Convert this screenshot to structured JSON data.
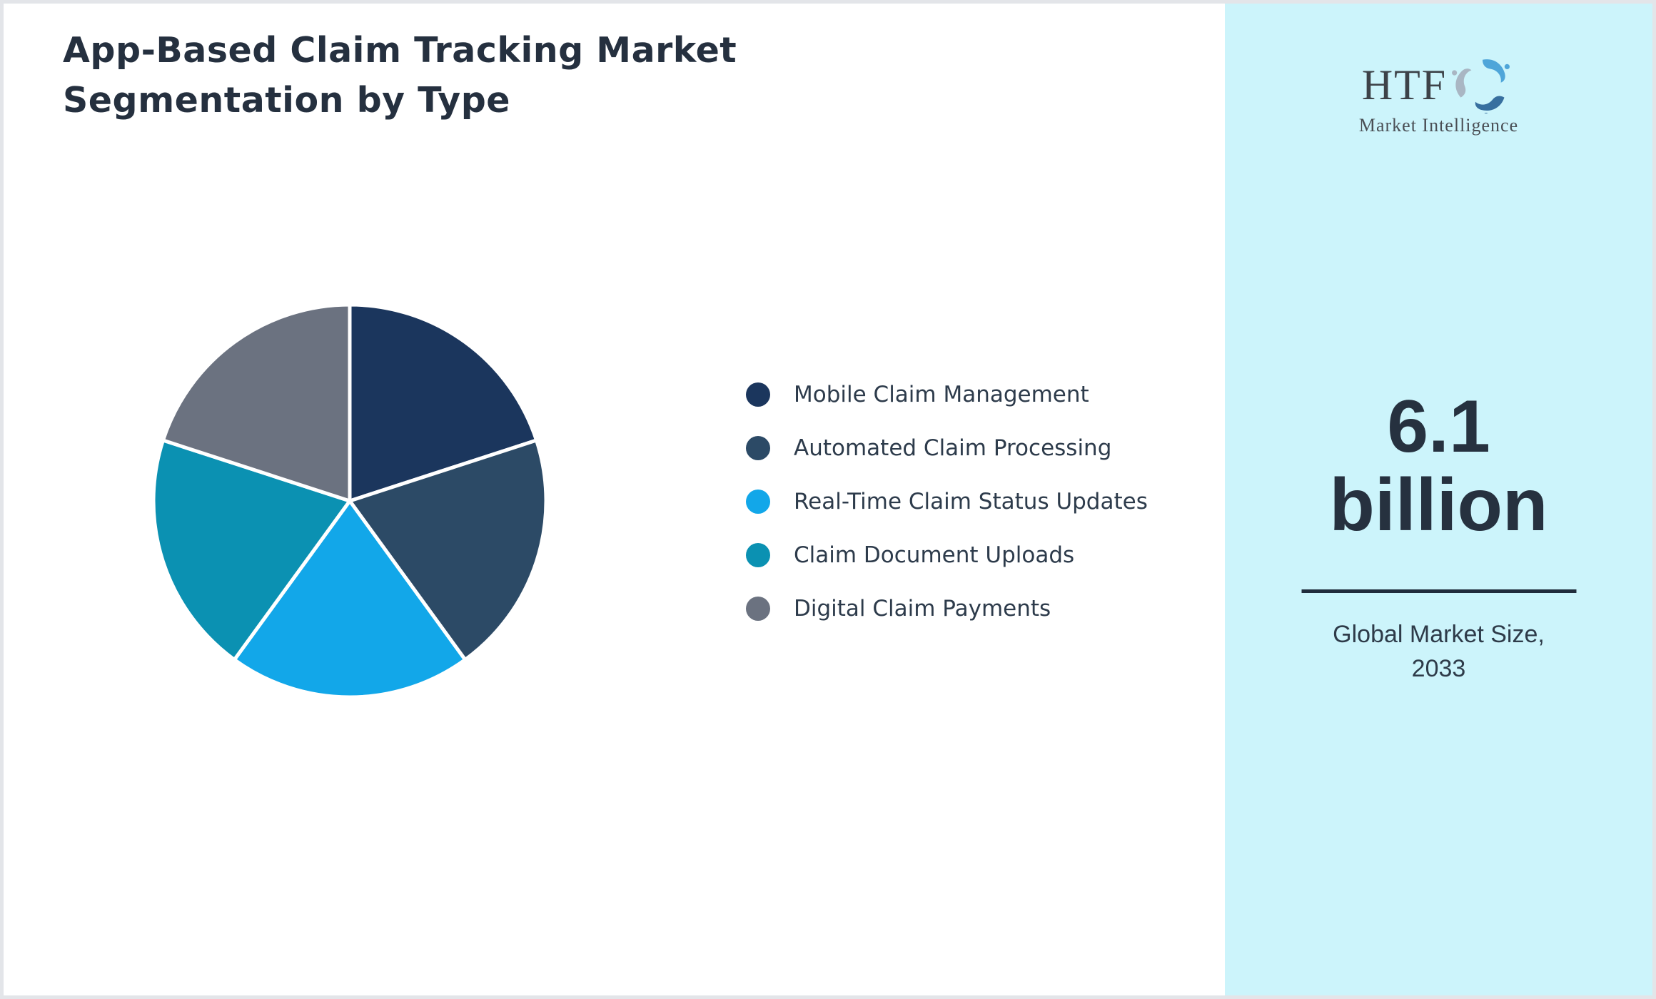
{
  "frame": {
    "background": "#ffffff",
    "border_color": "#e3e5e9"
  },
  "title": {
    "line1": "App-Based Claim Tracking Market",
    "line2": "Segmentation by Type",
    "color": "#25303f"
  },
  "chart_data": {
    "type": "pie",
    "title": "App-Based Claim Tracking Market Segmentation by Type",
    "labels": [
      "Mobile Claim Management",
      "Automated Claim Processing",
      "Real-Time Claim Status Updates",
      "Claim Document Uploads",
      "Digital Claim Payments"
    ],
    "values": [
      20,
      20,
      20,
      20,
      20
    ],
    "unit": "percent-share (slices visually equal, ~72° each)",
    "colors": [
      "#1b365d",
      "#2c4a66",
      "#12a7e9",
      "#0b91b2",
      "#6b7280"
    ],
    "start_angle": "12-o'clock",
    "direction": "clockwise",
    "edge_color": "#ffffff",
    "legend_position": "right-of-chart",
    "data_labels_shown": false
  },
  "legend": {
    "items": [
      {
        "label": "Mobile Claim Management",
        "color": "#1b365d"
      },
      {
        "label": "Automated Claim Processing",
        "color": "#2c4a66"
      },
      {
        "label": "Real-Time Claim Status Updates",
        "color": "#12a7e9"
      },
      {
        "label": "Claim Document Uploads",
        "color": "#0b91b2"
      },
      {
        "label": "Digital Claim Payments",
        "color": "#6b7280"
      }
    ]
  },
  "sidebar": {
    "background": "#ccf4fb",
    "logo": {
      "text": "HTF",
      "subtext": "Market Intelligence",
      "icon": "dolphin-swirl",
      "icon_colors": {
        "light_blue": "#4ea5d9",
        "steel_blue": "#376f9f",
        "gray": "#a9b6c3"
      }
    },
    "value_line1": "6.1",
    "value_line2": "billion",
    "divider_color": "#202c3c",
    "caption_line1": "Global Market Size,",
    "caption_line2": "2033"
  }
}
